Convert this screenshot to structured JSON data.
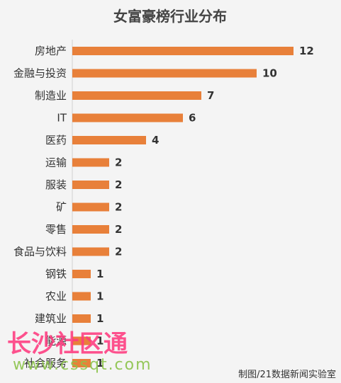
{
  "chart_data": {
    "type": "bar",
    "orientation": "horizontal",
    "title": "女富豪榜行业分布",
    "categories": [
      "房地产",
      "金融与投资",
      "制造业",
      "IT",
      "医药",
      "运输",
      "服装",
      "矿",
      "零售",
      "食品与饮料",
      "钢铁",
      "农业",
      "建筑业",
      "能源",
      "社会服务"
    ],
    "values": [
      12,
      10,
      7,
      6,
      4,
      2,
      2,
      2,
      2,
      2,
      1,
      1,
      1,
      1,
      1
    ],
    "xlabel": "",
    "ylabel": "",
    "xlim": [
      0,
      12
    ],
    "grid": false,
    "legend": "none",
    "bar_color": "#e8803a"
  },
  "credit": "制图/21数据新闻实验室",
  "watermark": {
    "text": "长沙社区通",
    "url": "www.cssqt.com"
  }
}
